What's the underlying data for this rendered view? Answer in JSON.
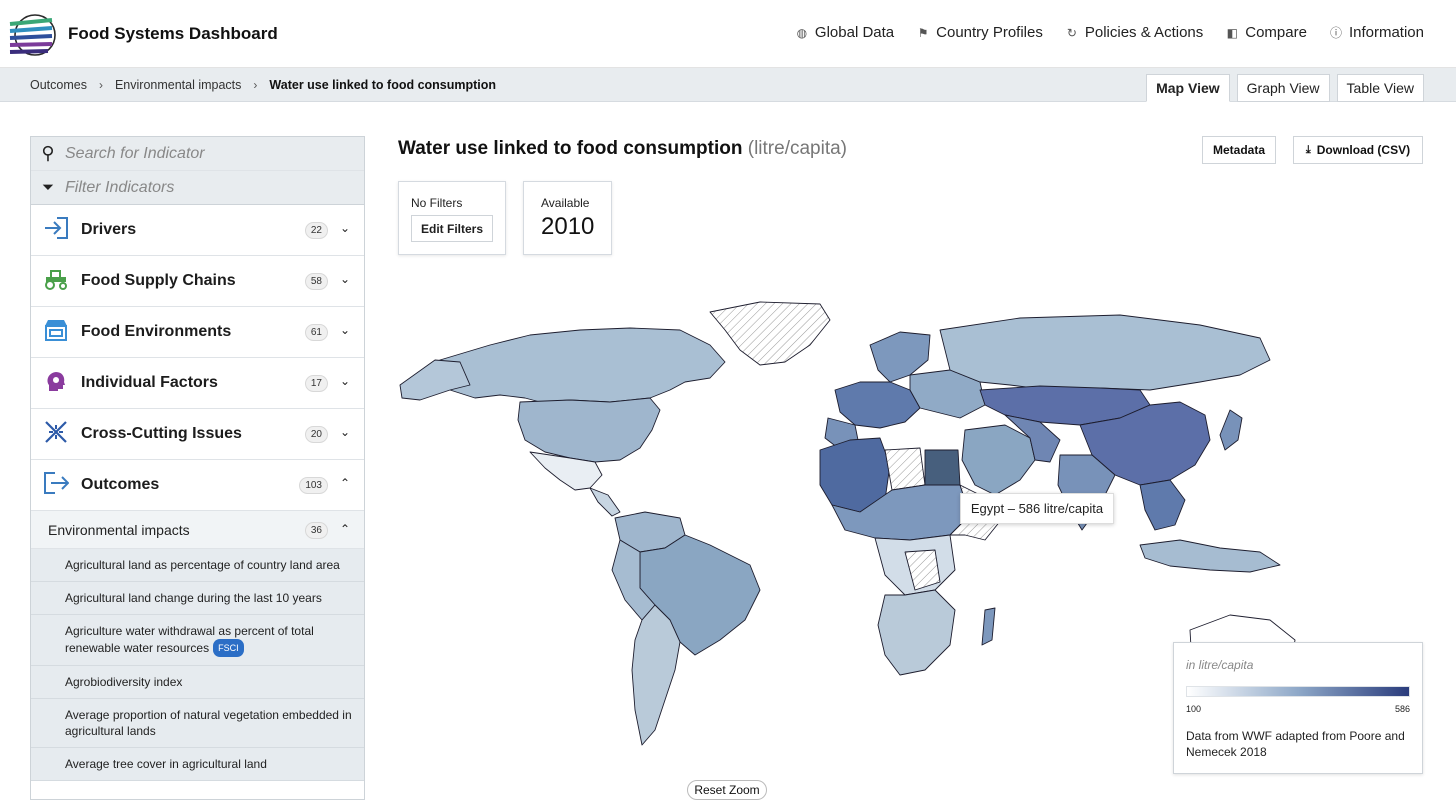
{
  "app": {
    "title": "Food Systems Dashboard"
  },
  "nav": [
    {
      "label": "Global Data",
      "icon": "globe-icon"
    },
    {
      "label": "Country Profiles",
      "icon": "flag-icon"
    },
    {
      "label": "Policies & Actions",
      "icon": "refresh-icon"
    },
    {
      "label": "Compare",
      "icon": "compare-icon"
    },
    {
      "label": "Information",
      "icon": "info-icon"
    }
  ],
  "breadcrumb": [
    "Outcomes",
    "Environmental impacts",
    "Water use linked to food consumption"
  ],
  "view_tabs": [
    {
      "label": "Map View",
      "active": true
    },
    {
      "label": "Graph View",
      "active": false
    },
    {
      "label": "Table View",
      "active": false
    }
  ],
  "sidebar": {
    "search_placeholder": "Search for Indicator",
    "filter_placeholder": "Filter Indicators",
    "categories": [
      {
        "label": "Drivers",
        "count": "22",
        "icon": "arrow-in-icon",
        "expanded": false
      },
      {
        "label": "Food Supply Chains",
        "count": "58",
        "icon": "tractor-icon",
        "expanded": false
      },
      {
        "label": "Food Environments",
        "count": "61",
        "icon": "store-icon",
        "expanded": false
      },
      {
        "label": "Individual Factors",
        "count": "17",
        "icon": "head-gear-icon",
        "expanded": false
      },
      {
        "label": "Cross-Cutting Issues",
        "count": "20",
        "icon": "cross-cutting-icon",
        "expanded": false
      },
      {
        "label": "Outcomes",
        "count": "103",
        "icon": "arrow-out-icon",
        "expanded": true
      }
    ],
    "subcategory": {
      "label": "Environmental impacts",
      "count": "36"
    },
    "indicators": [
      {
        "label": "Agricultural land as percentage of country land area"
      },
      {
        "label": "Agricultural land change during the last 10 years"
      },
      {
        "label": "Agriculture water withdrawal as percent of total renewable water resources",
        "tag": "FSCI"
      },
      {
        "label": "Agrobiodiversity index"
      },
      {
        "label": "Average proportion of natural vegetation embedded in agricultural lands"
      },
      {
        "label": "Average tree cover in agricultural land"
      }
    ]
  },
  "main": {
    "title": "Water use linked to food consumption",
    "unit": "(litre/capita)",
    "metadata_label": "Metadata",
    "download_label": "Download (CSV)",
    "filters_label": "No Filters",
    "edit_filters_label": "Edit Filters",
    "available_label": "Available",
    "year": "2010",
    "tooltip": "Egypt – 586 litre/capita",
    "reset_zoom_label": "Reset Zoom"
  },
  "legend": {
    "unit": "in litre/capita",
    "min": "100",
    "max": "586",
    "source": "Data from WWF adapted from Poore and Nemecek 2018"
  },
  "colors": {
    "scale_low": "#ffffff",
    "scale_mid": "#8ea8c8",
    "scale_high": "#2a3c7c",
    "accent": "#2b6ec6"
  }
}
